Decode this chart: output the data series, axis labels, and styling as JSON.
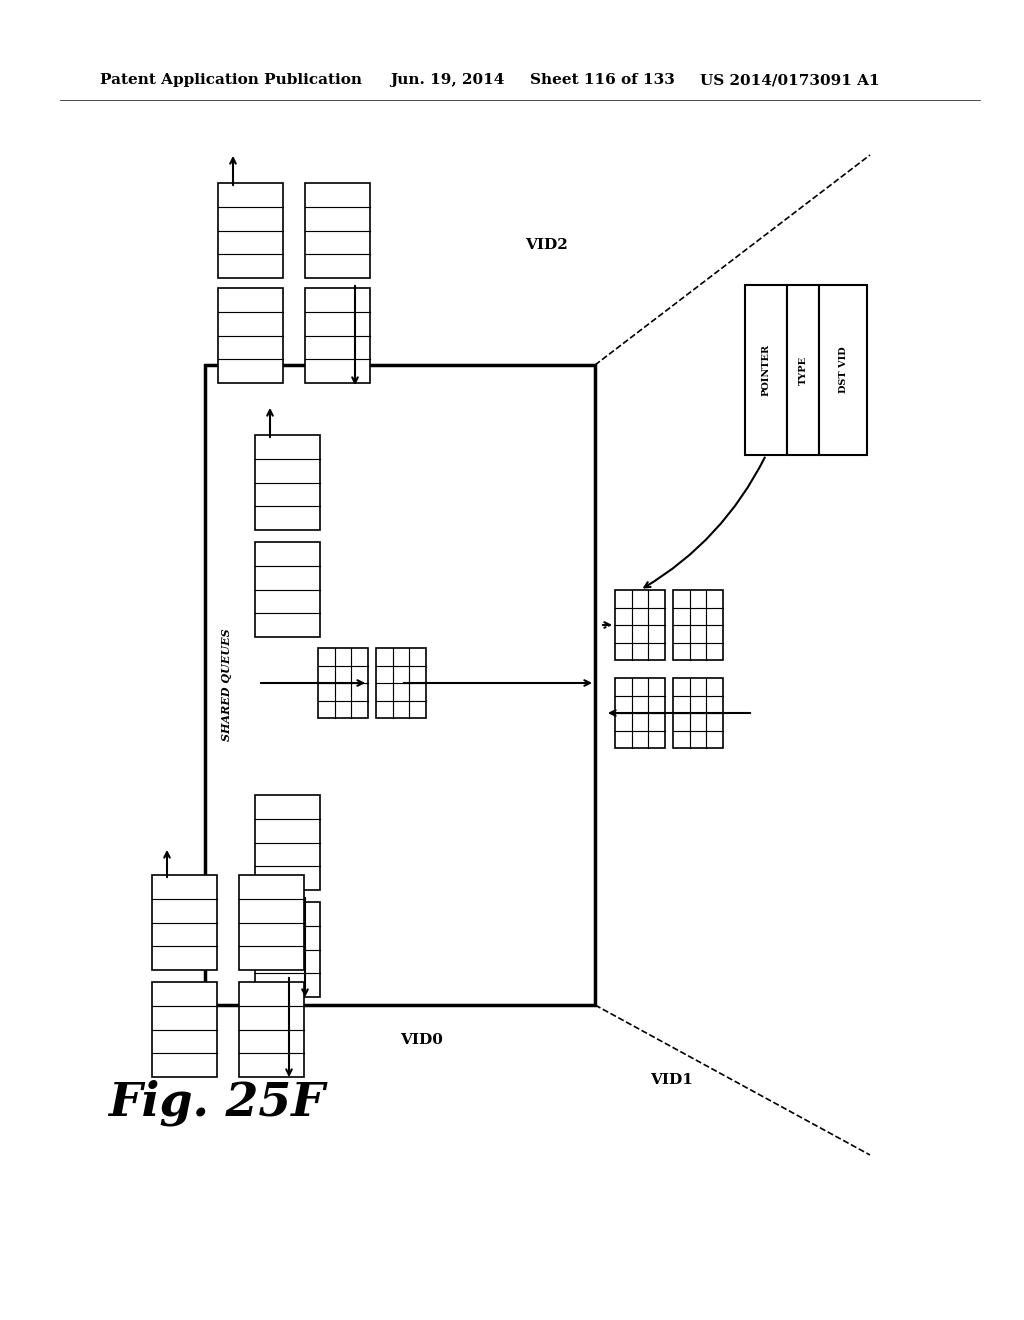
{
  "header_text": "Patent Application Publication",
  "header_date": "Jun. 19, 2014",
  "header_sheet": "Sheet 116 of 133",
  "header_patent": "US 2014/0173091 A1",
  "fig_label": "Fig. 25F",
  "bg_color": "#ffffff",
  "text_color": "#000000",
  "labels": {
    "shared_queues": "SHARED QUEUES",
    "vid0": "VID0",
    "vid1": "VID1",
    "vid2": "VID2",
    "pointer": "POINTER",
    "type": "TYPE",
    "dst_vid": "DST VID"
  }
}
